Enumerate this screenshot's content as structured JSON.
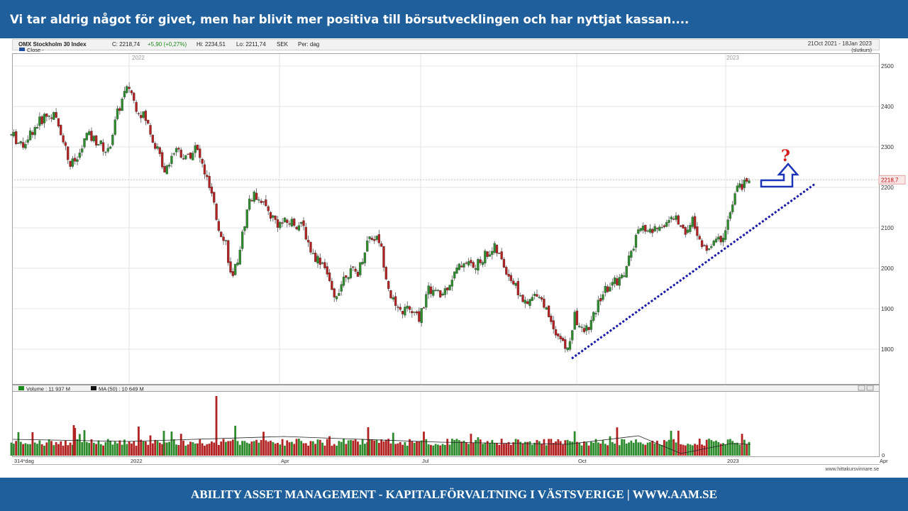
{
  "header": {
    "title": "Vi tar aldrig något för givet, men har blivit mer positiva till börsutvecklingen och har nyttjat kassan...."
  },
  "footer": {
    "text": "ABILITY ASSET MANAGEMENT -  KAPITALFÖRVALTNING I VÄSTSVERIGE   |   WWW.AAM.SE"
  },
  "chart_data": {
    "type": "candlestick",
    "info": {
      "name": "OMX Stockholm 30 Index",
      "close_label": "C: 2218,74",
      "change_label": "+5,90 (+0,27%)",
      "high_label": "Hi: 2234,51",
      "low_label": "Lo: 2211,74",
      "currency": "SEK",
      "period_label": "Per: dag",
      "date_range": "21Oct 2021 - 18Jan 2023",
      "range_note": "(slutkurs)",
      "legend_close": "Close -"
    },
    "year_labels": [
      "2022",
      "2023"
    ],
    "price_axis": {
      "ticks": [
        1800,
        1900,
        2000,
        2100,
        2200,
        2300,
        2400,
        2500
      ],
      "tick_labels": [
        "1800",
        "1900",
        "2000",
        "2100",
        "2200",
        "2300",
        "2400",
        "2500"
      ],
      "last_value": 2218.74,
      "last_label": "2218,7",
      "ylim": [
        1720,
        2540
      ]
    },
    "waypoints": [
      {
        "x": 0,
        "v": 2325
      },
      {
        "x": 18,
        "v": 2330
      },
      {
        "x": 30,
        "v": 2300
      },
      {
        "x": 45,
        "v": 2340
      },
      {
        "x": 62,
        "v": 2375
      },
      {
        "x": 75,
        "v": 2380
      },
      {
        "x": 88,
        "v": 2330
      },
      {
        "x": 98,
        "v": 2255
      },
      {
        "x": 110,
        "v": 2270
      },
      {
        "x": 122,
        "v": 2330
      },
      {
        "x": 140,
        "v": 2310
      },
      {
        "x": 152,
        "v": 2285
      },
      {
        "x": 165,
        "v": 2380
      },
      {
        "x": 175,
        "v": 2430
      },
      {
        "x": 183,
        "v": 2450
      },
      {
        "x": 190,
        "v": 2405
      },
      {
        "x": 205,
        "v": 2370
      },
      {
        "x": 220,
        "v": 2300
      },
      {
        "x": 232,
        "v": 2245
      },
      {
        "x": 248,
        "v": 2300
      },
      {
        "x": 262,
        "v": 2270
      },
      {
        "x": 276,
        "v": 2300
      },
      {
        "x": 288,
        "v": 2240
      },
      {
        "x": 298,
        "v": 2180
      },
      {
        "x": 308,
        "v": 2100
      },
      {
        "x": 318,
        "v": 2070
      },
      {
        "x": 327,
        "v": 1960
      },
      {
        "x": 338,
        "v": 2050
      },
      {
        "x": 352,
        "v": 2175
      },
      {
        "x": 365,
        "v": 2180
      },
      {
        "x": 378,
        "v": 2140
      },
      {
        "x": 392,
        "v": 2110
      },
      {
        "x": 412,
        "v": 2115
      },
      {
        "x": 428,
        "v": 2100
      },
      {
        "x": 440,
        "v": 2035
      },
      {
        "x": 458,
        "v": 2010
      },
      {
        "x": 470,
        "v": 1920
      },
      {
        "x": 488,
        "v": 1990
      },
      {
        "x": 505,
        "v": 1990
      },
      {
        "x": 520,
        "v": 2080
      },
      {
        "x": 535,
        "v": 2070
      },
      {
        "x": 548,
        "v": 1950
      },
      {
        "x": 560,
        "v": 1890
      },
      {
        "x": 575,
        "v": 1900
      },
      {
        "x": 590,
        "v": 1875
      },
      {
        "x": 605,
        "v": 1950
      },
      {
        "x": 622,
        "v": 1930
      },
      {
        "x": 640,
        "v": 1985
      },
      {
        "x": 655,
        "v": 2020
      },
      {
        "x": 670,
        "v": 2000
      },
      {
        "x": 682,
        "v": 2030
      },
      {
        "x": 698,
        "v": 2050
      },
      {
        "x": 712,
        "v": 2000
      },
      {
        "x": 725,
        "v": 1960
      },
      {
        "x": 742,
        "v": 1905
      },
      {
        "x": 758,
        "v": 1945
      },
      {
        "x": 772,
        "v": 1890
      },
      {
        "x": 785,
        "v": 1840
      },
      {
        "x": 800,
        "v": 1795
      },
      {
        "x": 810,
        "v": 1880
      },
      {
        "x": 822,
        "v": 1840
      },
      {
        "x": 835,
        "v": 1870
      },
      {
        "x": 848,
        "v": 1935
      },
      {
        "x": 862,
        "v": 1960
      },
      {
        "x": 878,
        "v": 1980
      },
      {
        "x": 888,
        "v": 2030
      },
      {
        "x": 898,
        "v": 2080
      },
      {
        "x": 908,
        "v": 2100
      },
      {
        "x": 920,
        "v": 2090
      },
      {
        "x": 935,
        "v": 2110
      },
      {
        "x": 952,
        "v": 2125
      },
      {
        "x": 965,
        "v": 2090
      },
      {
        "x": 978,
        "v": 2120
      },
      {
        "x": 990,
        "v": 2045
      },
      {
        "x": 1005,
        "v": 2060
      },
      {
        "x": 1018,
        "v": 2075
      },
      {
        "x": 1030,
        "v": 2140
      },
      {
        "x": 1040,
        "v": 2200
      },
      {
        "x": 1056,
        "v": 2218
      }
    ],
    "trendline": {
      "from": {
        "x": 806,
        "v": 1777
      },
      "to": {
        "x": 1150,
        "v": 2210
      }
    },
    "annotation": {
      "question_mark": "?",
      "arrow": "up-arrow"
    },
    "volume_legend": {
      "volume_label": "Volume : 11 937 M",
      "ma_label": "MA (50) : 10 649 M"
    },
    "volume_axis_labels": [
      "0"
    ],
    "month_labels": [
      {
        "x": 18,
        "label": "314*dag"
      },
      {
        "x": 182,
        "label": "2022"
      },
      {
        "x": 394,
        "label": "Apr"
      },
      {
        "x": 593,
        "label": "Jul"
      },
      {
        "x": 813,
        "label": "Oct"
      },
      {
        "x": 1023,
        "label": "2023"
      },
      {
        "x": 1238,
        "label": "Apr"
      }
    ],
    "source": "www.hittakursvinnare.se",
    "colors": {
      "up": "#2e8b2e",
      "down": "#b22222",
      "trend": "#1a1aa8",
      "arrow": "#1c34b8",
      "question": "#d21a1a"
    }
  }
}
